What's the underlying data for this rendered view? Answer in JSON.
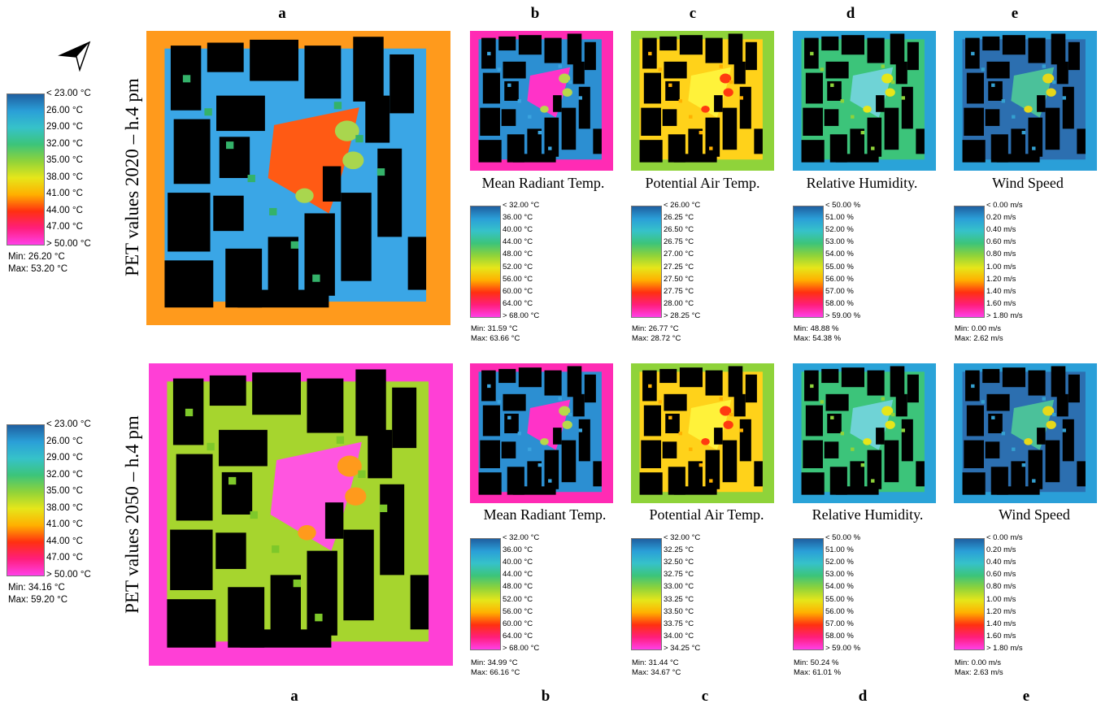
{
  "column_letters": [
    "a",
    "b",
    "c",
    "d",
    "e"
  ],
  "rows": [
    {
      "row_label": "PET values 2020 – h.4 pm",
      "pet_legend": {
        "ticks": [
          "< 23.00 °C",
          "26.00  °C",
          "29.00  °C",
          "32.00  °C",
          "35.00  °C",
          "38.00  °C",
          "41.00  °C",
          "44.00  °C",
          "47.00  °C",
          "> 50.00 °C"
        ],
        "min": "Min: 26.20 °C",
        "max": "Max: 53.20 °C"
      },
      "panels": [
        {
          "title": "Mean Radiant Temp.",
          "ticks": [
            "< 32.00 °C",
            "36.00  °C",
            "40.00  °C",
            "44.00  °C",
            "48.00  °C",
            "52.00  °C",
            "56.00  °C",
            "60.00  °C",
            "64.00  °C",
            "> 68.00 °C"
          ],
          "min": "Min: 31.59 °C",
          "max": "Max: 63.66 °C"
        },
        {
          "title": "Potential Air Temp.",
          "ticks": [
            "< 26.00 °C",
            "26.25  °C",
            "26.50  °C",
            "26.75  °C",
            "27.00  °C",
            "27.25  °C",
            "27.50  °C",
            "27.75  °C",
            "28.00  °C",
            "> 28.25 °C"
          ],
          "min": "Min: 26.77 °C",
          "max": "Max: 28.72 °C"
        },
        {
          "title": "Relative Humidity.",
          "ticks": [
            "< 50.00 %",
            "51.00  %",
            "52.00  %",
            "53.00  %",
            "54.00  %",
            "55.00  %",
            "56.00  %",
            "57.00  %",
            "58.00  %",
            "> 59.00 %"
          ],
          "min": "Min: 48.88 %",
          "max": "Max: 54.38 %"
        },
        {
          "title": "Wind Speed",
          "ticks": [
            "< 0.00 m/s",
            "0.20  m/s",
            "0.40  m/s",
            "0.60  m/s",
            "0.80  m/s",
            "1.00  m/s",
            "1.20  m/s",
            "1.40  m/s",
            "1.60  m/s",
            "> 1.80 m/s"
          ],
          "min": "Min: 0.00 m/s",
          "max": "Max: 2.62 m/s"
        }
      ]
    },
    {
      "row_label": "PET values 2050 – h.4 pm",
      "pet_legend": {
        "ticks": [
          "< 23.00 °C",
          "26.00  °C",
          "29.00  °C",
          "32.00  °C",
          "35.00  °C",
          "38.00  °C",
          "41.00  °C",
          "44.00  °C",
          "47.00  °C",
          "> 50.00 °C"
        ],
        "min": "Min: 34.16 °C",
        "max": "Max: 59.20 °C"
      },
      "panels": [
        {
          "title": "Mean Radiant Temp.",
          "ticks": [
            "< 32.00 °C",
            "36.00  °C",
            "40.00  °C",
            "44.00  °C",
            "48.00  °C",
            "52.00  °C",
            "56.00  °C",
            "60.00  °C",
            "64.00  °C",
            "> 68.00 °C"
          ],
          "min": "Min: 34.99 °C",
          "max": "Max: 66.16 °C"
        },
        {
          "title": "Potential Air Temp.",
          "ticks": [
            "< 32.00 °C",
            "32.25  °C",
            "32.50  °C",
            "32.75  °C",
            "33.00  °C",
            "33.25  °C",
            "33.50  °C",
            "33.75  °C",
            "34.00  °C",
            "> 34.25 °C"
          ],
          "min": "Min: 31.44 °C",
          "max": "Max: 34.67 °C"
        },
        {
          "title": "Relative Humidity.",
          "ticks": [
            "< 50.00 %",
            "51.00  %",
            "52.00  %",
            "53.00  %",
            "54.00  %",
            "55.00  %",
            "56.00  %",
            "57.00  %",
            "58.00  %",
            "> 59.00 %"
          ],
          "min": "Min: 50.24 %",
          "max": "Max: 61.01 %"
        },
        {
          "title": "Wind Speed",
          "ticks": [
            "< 0.00 m/s",
            "0.20  m/s",
            "0.40  m/s",
            "0.60  m/s",
            "0.80  m/s",
            "1.00  m/s",
            "1.20  m/s",
            "1.40  m/s",
            "1.60  m/s",
            "> 1.80 m/s"
          ],
          "min": "Min: 0.00 m/s",
          "max": "Max: 2.63 m/s"
        }
      ]
    }
  ],
  "color_ramp": [
    "#1f5fa0",
    "#2a9fd8",
    "#36c2c9",
    "#3cc47a",
    "#8fd33a",
    "#e6e61a",
    "#ffb000",
    "#ff3010",
    "#ff1e7a",
    "#ff40e8"
  ],
  "map_palettes": {
    "pet_2020": {
      "bg": "#ff9a1c",
      "open": "#3aa6e6",
      "tree": "#34b26a",
      "plaza": "#ff5a14",
      "hot": "#a9d64e"
    },
    "pet_2050": {
      "bg": "#ff3fd6",
      "open": "#a6d52e",
      "tree": "#7ec82a",
      "plaza": "#ff55e0",
      "hot": "#ff9a1c"
    },
    "mrt": {
      "bg": "#ff2bb4",
      "open": "#2c8fd2",
      "tree": "#3aa4df",
      "plaza": "#ff33c8",
      "hot": "#b8d84a"
    },
    "air": {
      "bg": "#8fd33a",
      "open": "#ffd21a",
      "tree": "#ffb000",
      "plaza": "#fff23a",
      "hot": "#ff3a10"
    },
    "rh": {
      "bg": "#2aa3d8",
      "open": "#3cc47a",
      "tree": "#8fd33a",
      "plaza": "#6fd3d6",
      "hot": "#e6e61a"
    },
    "wind": {
      "bg": "#2a9fd8",
      "open": "#2c6fb0",
      "tree": "#34a0d0",
      "plaza": "#4bc19a",
      "hot": "#e6d81a"
    }
  }
}
